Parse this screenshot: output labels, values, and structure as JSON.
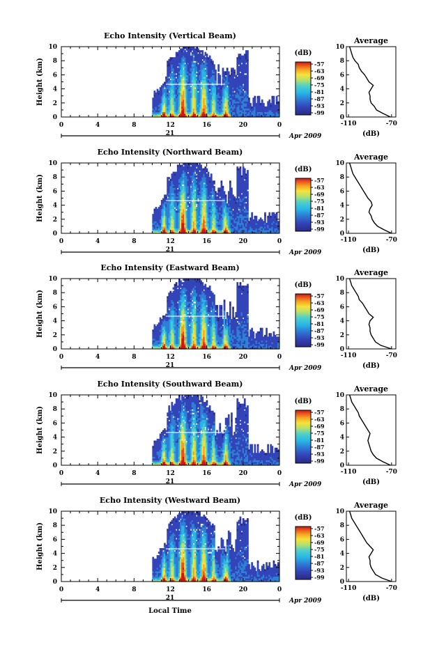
{
  "figure": {
    "xlabel": "Local Time",
    "date_label": "Apr 2009",
    "day_label": "21",
    "colorbar_unit": "(dB)",
    "colorbar_ticks": [
      "-57",
      "-63",
      "-69",
      "-75",
      "-81",
      "-87",
      "-93",
      "-99"
    ],
    "avg_title": "Average",
    "avg_xlabel": "(dB)"
  },
  "colors": {
    "colormap": [
      "#2a2a85",
      "#3344b8",
      "#2e7fd6",
      "#29b6e6",
      "#4fd0c8",
      "#b8e06a",
      "#f6e23a",
      "#f5a022",
      "#e8501e",
      "#c81818"
    ]
  },
  "chart_data": [
    {
      "type": "heatmap",
      "title": "Echo Intensity (Vertical Beam)",
      "ylabel": "Height (km)",
      "xlabel": "Local Time",
      "x_ticks": [
        "0",
        "4",
        "8",
        "12",
        "16",
        "20",
        "0"
      ],
      "y_ticks": [
        "0",
        "2",
        "4",
        "6",
        "8",
        "10"
      ],
      "xlim": [
        0,
        24
      ],
      "ylim": [
        0,
        10
      ],
      "colorbar": {
        "label": "(dB)",
        "range": [
          -99,
          -57
        ]
      },
      "average_profile": {
        "title": "Average",
        "xlabel": "(dB)",
        "x_ticks": [
          "-110",
          "-70"
        ],
        "xlim": [
          -112,
          -66
        ],
        "height_km": [
          0,
          0.5,
          1,
          1.5,
          2,
          2.5,
          3,
          3.5,
          4,
          4.5,
          5,
          5.5,
          6,
          6.5,
          7,
          7.5,
          8,
          8.5,
          9,
          9.5,
          10
        ],
        "db": [
          -71,
          -78,
          -84,
          -86,
          -89,
          -90,
          -90,
          -91,
          -89,
          -87,
          -91,
          -93,
          -95,
          -98,
          -100,
          -101,
          -104,
          -106,
          -107,
          -108,
          -109
        ]
      }
    },
    {
      "type": "heatmap",
      "title": "Echo Intensity (Northward Beam)",
      "ylabel": "Height (km)",
      "xlabel": "Local Time",
      "x_ticks": [
        "0",
        "4",
        "8",
        "12",
        "16",
        "20",
        "0"
      ],
      "y_ticks": [
        "0",
        "2",
        "4",
        "6",
        "8",
        "10"
      ],
      "xlim": [
        0,
        24
      ],
      "ylim": [
        0,
        10
      ],
      "colorbar": {
        "label": "(dB)",
        "range": [
          -99,
          -57
        ]
      },
      "average_profile": {
        "title": "Average",
        "xlabel": "(dB)",
        "x_ticks": [
          "-110",
          "-70"
        ],
        "xlim": [
          -112,
          -66
        ],
        "height_km": [
          0,
          0.5,
          1,
          1.5,
          2,
          2.5,
          3,
          3.5,
          4,
          4.5,
          5,
          5.5,
          6,
          6.5,
          7,
          7.5,
          8,
          8.5,
          9,
          9.5,
          10
        ],
        "db": [
          -70,
          -77,
          -83,
          -86,
          -88,
          -89,
          -91,
          -90,
          -88,
          -89,
          -92,
          -94,
          -96,
          -98,
          -100,
          -102,
          -104,
          -106,
          -107,
          -108,
          -109
        ]
      }
    },
    {
      "type": "heatmap",
      "title": "Echo Intensity (Eastward Beam)",
      "ylabel": "Height (km)",
      "xlabel": "Local Time",
      "x_ticks": [
        "0",
        "4",
        "8",
        "12",
        "16",
        "20",
        "0"
      ],
      "y_ticks": [
        "0",
        "2",
        "4",
        "6",
        "8",
        "10"
      ],
      "xlim": [
        0,
        24
      ],
      "ylim": [
        0,
        10
      ],
      "colorbar": {
        "label": "(dB)",
        "range": [
          -99,
          -57
        ]
      },
      "average_profile": {
        "title": "Average",
        "xlabel": "(dB)",
        "x_ticks": [
          "-110",
          "-70"
        ],
        "xlim": [
          -112,
          -66
        ],
        "height_km": [
          0,
          0.5,
          1,
          1.5,
          2,
          2.5,
          3,
          3.5,
          4,
          4.5,
          5,
          5.5,
          6,
          6.5,
          7,
          7.5,
          8,
          8.5,
          9,
          9.5,
          10
        ],
        "db": [
          -70,
          -80,
          -85,
          -87,
          -89,
          -90,
          -90,
          -91,
          -90,
          -87,
          -91,
          -93,
          -95,
          -97,
          -100,
          -101,
          -103,
          -105,
          -107,
          -108,
          -109
        ]
      }
    },
    {
      "type": "heatmap",
      "title": "Echo Intensity (Southward Beam)",
      "ylabel": "Height (km)",
      "xlabel": "Local Time",
      "x_ticks": [
        "0",
        "4",
        "8",
        "12",
        "16",
        "20",
        "0"
      ],
      "y_ticks": [
        "0",
        "2",
        "4",
        "6",
        "8",
        "10"
      ],
      "xlim": [
        0,
        24
      ],
      "ylim": [
        0,
        10
      ],
      "colorbar": {
        "label": "(dB)",
        "range": [
          -99,
          -57
        ]
      },
      "average_profile": {
        "title": "Average",
        "xlabel": "(dB)",
        "x_ticks": [
          "-110",
          "-70"
        ],
        "xlim": [
          -112,
          -66
        ],
        "height_km": [
          0,
          0.5,
          1,
          1.5,
          2,
          2.5,
          3,
          3.5,
          4,
          4.5,
          5,
          5.5,
          6,
          6.5,
          7,
          7.5,
          8,
          8.5,
          9,
          9.5,
          10
        ],
        "db": [
          -71,
          -78,
          -84,
          -87,
          -89,
          -90,
          -91,
          -92,
          -91,
          -90,
          -92,
          -94,
          -96,
          -98,
          -100,
          -101,
          -103,
          -105,
          -107,
          -108,
          -109
        ]
      }
    },
    {
      "type": "heatmap",
      "title": "Echo Intensity (Westward Beam)",
      "ylabel": "Height (km)",
      "xlabel": "Local Time",
      "x_ticks": [
        "0",
        "4",
        "8",
        "12",
        "16",
        "20",
        "0"
      ],
      "y_ticks": [
        "0",
        "2",
        "4",
        "6",
        "8",
        "10"
      ],
      "xlim": [
        0,
        24
      ],
      "ylim": [
        0,
        10
      ],
      "colorbar": {
        "label": "(dB)",
        "range": [
          -99,
          -57
        ]
      },
      "average_profile": {
        "title": "Average",
        "xlabel": "(dB)",
        "x_ticks": [
          "-110",
          "-70"
        ],
        "xlim": [
          -112,
          -66
        ],
        "height_km": [
          0,
          0.5,
          1,
          1.5,
          2,
          2.5,
          3,
          3.5,
          4,
          4.5,
          5,
          5.5,
          6,
          6.5,
          7,
          7.5,
          8,
          8.5,
          9,
          9.5,
          10
        ],
        "db": [
          -70,
          -79,
          -85,
          -87,
          -89,
          -90,
          -90,
          -91,
          -89,
          -87,
          -90,
          -93,
          -95,
          -97,
          -99,
          -101,
          -103,
          -105,
          -107,
          -108,
          -109
        ]
      }
    }
  ]
}
